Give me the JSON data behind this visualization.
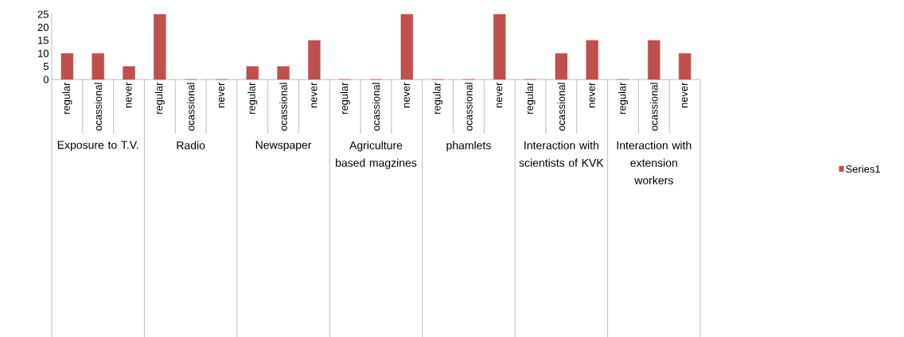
{
  "chart_data": {
    "type": "bar",
    "categories": [
      "regular",
      "ocassional",
      "never",
      "regular",
      "ocassional",
      "never",
      "regular",
      "ocassional",
      "never",
      "regular",
      "ocassional",
      "never",
      "regular",
      "ocassional",
      "never",
      "regular",
      "ocassional",
      "never",
      "regular",
      "ocassional",
      "never"
    ],
    "series": [
      {
        "name": "Series1",
        "color": "#c0504d",
        "values": [
          10,
          10,
          5,
          25,
          0,
          0,
          5,
          5,
          15,
          0,
          0,
          25,
          0,
          0,
          25,
          0,
          10,
          15,
          0,
          15,
          10
        ]
      }
    ],
    "annotations": [
      "Exposure to T.V.",
      "Radio",
      "Newspaper",
      "Agriculture based magzines",
      "phamlets",
      "Interaction with scientists of KVK",
      "Interaction with extension workers"
    ],
    "ylim": [
      0,
      25
    ],
    "yticks": [
      0,
      5,
      10,
      15,
      20,
      25
    ],
    "legend": "right",
    "grid": false
  }
}
